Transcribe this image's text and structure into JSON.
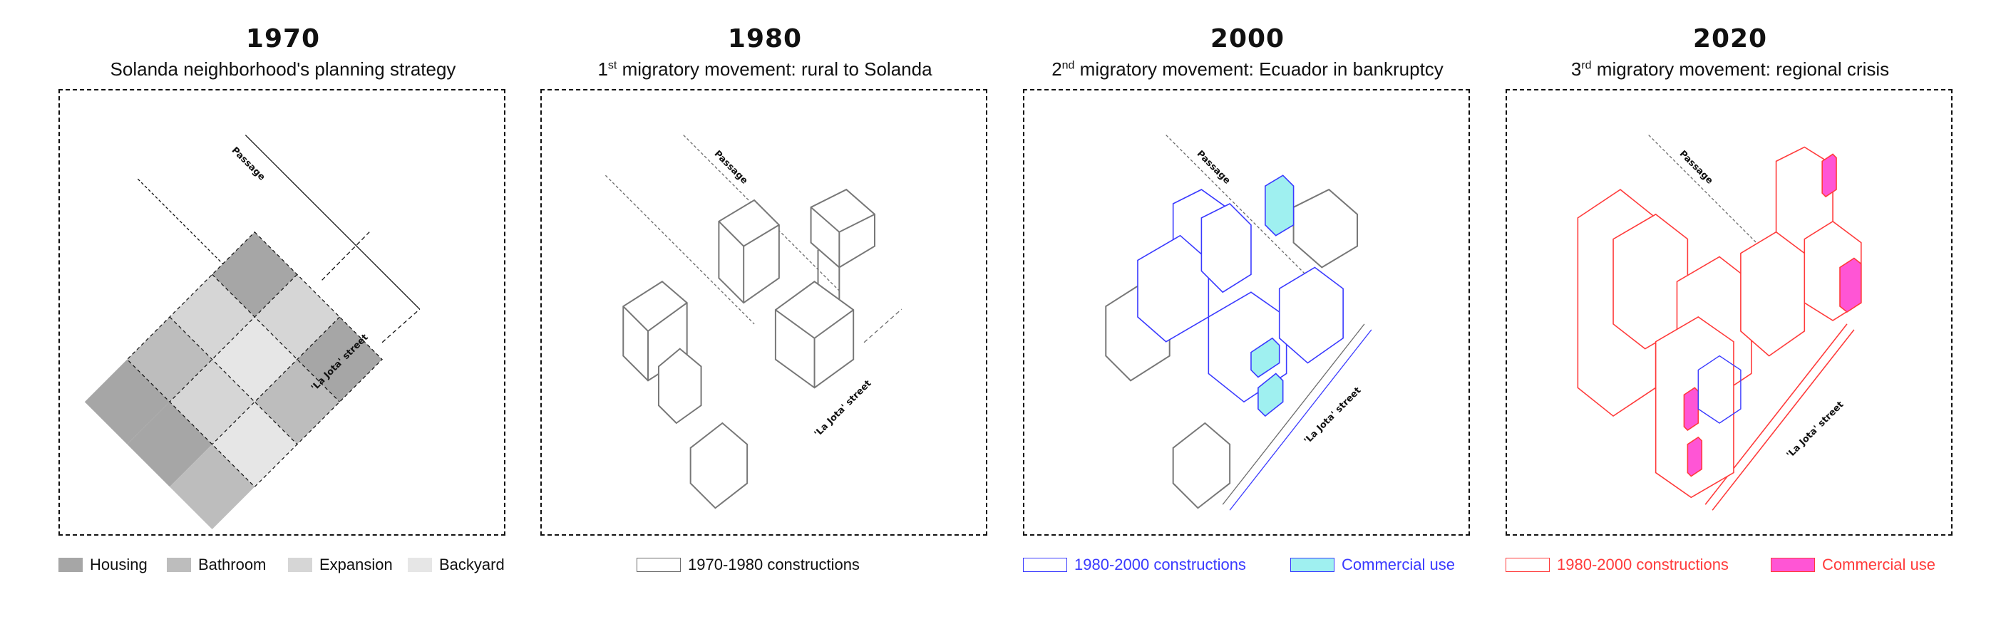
{
  "colors": {
    "housing": "#a6a6a6",
    "bathroom": "#bdbdbd",
    "expansion": "#d6d6d6",
    "backyard": "#e6e6e6",
    "construction_1980": "#6b6b6b",
    "construction_2000": "#3a3aff",
    "commercial_2000": "#9ff0f0",
    "construction_2020": "#ff3b3b",
    "commercial_2020": "#ff55d5"
  },
  "panels": [
    {
      "year": "1970",
      "subtitle": "Solanda neighborhood's planning strategy",
      "passage_label": "Passage",
      "street_label": "'La Jota' street",
      "legend": [
        "Housing",
        "Bathroom",
        "Expansion",
        "Backyard"
      ]
    },
    {
      "year": "1980",
      "subtitle_ordinal": "1",
      "subtitle_sup": "st",
      "subtitle_rest": " migratory movement: rural to Solanda",
      "passage_label": "Passage",
      "street_label": "'La Jota' street",
      "legend": [
        "1970-1980 constructions"
      ]
    },
    {
      "year": "2000",
      "subtitle_ordinal": "2",
      "subtitle_sup": "nd",
      "subtitle_rest": " migratory movement: Ecuador in bankruptcy",
      "passage_label": "Passage",
      "street_label": "'La Jota' street",
      "legend": [
        "1980-2000 constructions",
        "Commercial use"
      ]
    },
    {
      "year": "2020",
      "subtitle_ordinal": "3",
      "subtitle_sup": "rd",
      "subtitle_rest": " migratory movement: regional crisis",
      "passage_label": "Passage",
      "street_label": "'La Jota' street",
      "legend": [
        "1980-2000 constructions",
        "Commercial use"
      ]
    }
  ]
}
